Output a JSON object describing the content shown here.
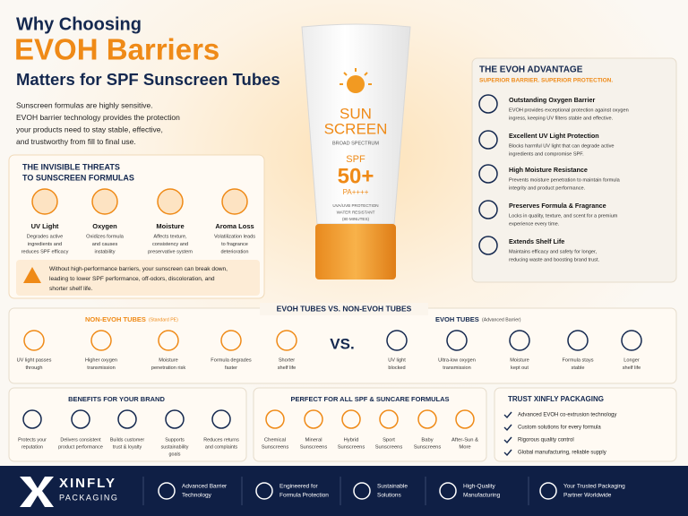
{
  "header": {
    "title_lines": [
      "Why Choosing",
      "EVOH Barriers",
      "Matters for SPF Sunscreen Tubes"
    ],
    "intro": [
      "Sunscreen formulas are highly sensitive.",
      "EVOH barrier technology provides the protection",
      "your products need to stay stable, effective,",
      "and trustworthy from fill to final use."
    ]
  },
  "threats": {
    "title": [
      "THE INVISIBLE THREATS",
      "TO SUNSCREEN FORMULAS"
    ],
    "items": [
      {
        "label": "UV Light",
        "desc": [
          "Degrades active",
          "ingredients and",
          "reduces SPF efficacy"
        ]
      },
      {
        "label": "Oxygen",
        "desc": [
          "Oxidizes formula",
          "and causes",
          "instability"
        ]
      },
      {
        "label": "Moisture",
        "desc": [
          "Affects texture,",
          "consistency and",
          "preservative system"
        ]
      },
      {
        "label": "Aroma Loss",
        "desc": [
          "Volatilization leads",
          "to fragrance",
          "deterioration"
        ]
      }
    ],
    "warning": [
      "Without high-performance barriers, your sunscreen can break down,",
      "leading to lower SPF performance, off-odors, discoloration, and",
      "shorter shelf life."
    ]
  },
  "tube": {
    "name": [
      "SUN",
      "SCREEN"
    ],
    "broad": "BROAD SPECTRUM",
    "spf": "SPF",
    "spf_value": "50+",
    "pa": "PA++++",
    "details": [
      "UVA/UVB PROTECTION",
      "WATER RESISTANT",
      "(80 MINUTES)"
    ]
  },
  "advantage": {
    "title": "THE EVOH ADVANTAGE",
    "subtitle": "SUPERIOR BARRIER. SUPERIOR PROTECTION.",
    "items": [
      {
        "title": "Outstanding Oxygen Barrier",
        "desc": [
          "EVOH provides exceptional protection against oxygen",
          "ingress, keeping UV filters stable and effective."
        ]
      },
      {
        "title": "Excellent UV Light Protection",
        "desc": [
          "Blocks harmful UV light that can degrade active",
          "ingredients and compromise SPF."
        ]
      },
      {
        "title": "High Moisture Resistance",
        "desc": [
          "Prevents moisture penetration to maintain formula",
          "integrity and product performance."
        ]
      },
      {
        "title": "Preserves Formula & Fragrance",
        "desc": [
          "Locks in quality, texture, and scent for a premium",
          "experience every time."
        ]
      },
      {
        "title": "Extends Shelf Life",
        "desc": [
          "Maintains efficacy and safety for longer,",
          "reducing waste and boosting brand trust."
        ]
      }
    ]
  },
  "comparison": {
    "title": "EVOH TUBES VS. NON-EVOH TUBES",
    "vs": "VS.",
    "non_evoh": {
      "name": "NON-EVOH TUBES",
      "note": "(Standard PE)",
      "items": [
        [
          "UV light passes",
          "through"
        ],
        [
          "Higher oxygen",
          "transmission"
        ],
        [
          "Moisture",
          "penetration risk"
        ],
        [
          "Formula degrades",
          "faster"
        ],
        [
          "Shorter",
          "shelf life"
        ]
      ]
    },
    "evoh": {
      "name": "EVOH TUBES",
      "note": "(Advanced Barrier)",
      "items": [
        [
          "UV light",
          "blocked"
        ],
        [
          "Ultra-low oxygen",
          "transmission"
        ],
        [
          "Moisture",
          "kept out"
        ],
        [
          "Formula stays",
          "stable"
        ],
        [
          "Longer",
          "shelf life"
        ]
      ]
    }
  },
  "benefits": {
    "title": "BENEFITS FOR YOUR BRAND",
    "items": [
      [
        "Protects your",
        "reputation"
      ],
      [
        "Delivers consistent",
        "product performance"
      ],
      [
        "Builds customer",
        "trust & loyalty"
      ],
      [
        "Supports",
        "sustainability",
        "goals"
      ],
      [
        "Reduces returns",
        "and complaints"
      ]
    ]
  },
  "formulas": {
    "title": "PERFECT FOR ALL SPF & SUNCARE FORMULAS",
    "items": [
      [
        "Chemical",
        "Sunscreens"
      ],
      [
        "Mineral",
        "Sunscreens"
      ],
      [
        "Hybrid",
        "Sunscreens"
      ],
      [
        "Sport",
        "Sunscreens"
      ],
      [
        "Baby",
        "Sunscreens"
      ],
      [
        "After-Sun &",
        "More"
      ]
    ]
  },
  "trust": {
    "title": "TRUST XINFLY PACKAGING",
    "items": [
      "Advanced EVOH co-extrusion technology",
      "Custom solutions for every formula",
      "Rigorous quality control",
      "Global manufacturing, reliable supply"
    ]
  },
  "footer": {
    "brand": "XINFLY",
    "sub": "PACKAGING",
    "features": [
      [
        "Advanced Barrier",
        "Technology"
      ],
      [
        "Engineered for",
        "Formula Protection"
      ],
      [
        "Sustainable",
        "Solutions"
      ],
      [
        "High-Quality",
        "Manufacturing"
      ],
      [
        "Your Trusted Packaging",
        "Partner Worldwide"
      ]
    ]
  }
}
